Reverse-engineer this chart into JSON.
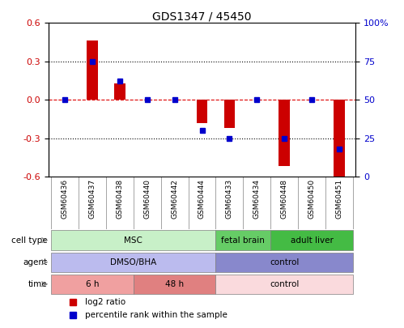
{
  "title": "GDS1347 / 45450",
  "samples": [
    "GSM60436",
    "GSM60437",
    "GSM60438",
    "GSM60440",
    "GSM60442",
    "GSM60444",
    "GSM60433",
    "GSM60434",
    "GSM60448",
    "GSM60450",
    "GSM60451"
  ],
  "log2_ratio": [
    0.0,
    0.46,
    0.13,
    0.0,
    0.0,
    -0.18,
    -0.22,
    0.0,
    -0.52,
    0.0,
    -0.62
  ],
  "percentile_rank": [
    50,
    75,
    62,
    50,
    50,
    30,
    25,
    50,
    25,
    50,
    18
  ],
  "ylim": [
    -0.6,
    0.6
  ],
  "y2lim": [
    0,
    100
  ],
  "yticks": [
    -0.6,
    -0.3,
    0.0,
    0.3,
    0.6
  ],
  "y2ticks": [
    0,
    25,
    50,
    75,
    100
  ],
  "hline_y": 0.0,
  "dot_lines": [
    0.3,
    -0.3
  ],
  "bar_color": "#cc0000",
  "dot_color": "#0000cc",
  "cell_type_groups": [
    {
      "label": "MSC",
      "start": 0,
      "end": 6,
      "color": "#c8f0c8"
    },
    {
      "label": "fetal brain",
      "start": 6,
      "end": 8,
      "color": "#66cc66"
    },
    {
      "label": "adult liver",
      "start": 8,
      "end": 11,
      "color": "#44bb44"
    }
  ],
  "agent_groups": [
    {
      "label": "DMSO/BHA",
      "start": 0,
      "end": 6,
      "color": "#bbbbee"
    },
    {
      "label": "control",
      "start": 6,
      "end": 11,
      "color": "#8888cc"
    }
  ],
  "time_groups": [
    {
      "label": "6 h",
      "start": 0,
      "end": 3,
      "color": "#f0a0a0"
    },
    {
      "label": "48 h",
      "start": 3,
      "end": 6,
      "color": "#e08080"
    },
    {
      "label": "control",
      "start": 6,
      "end": 11,
      "color": "#fadadd"
    }
  ],
  "row_labels": [
    "cell type",
    "agent",
    "time"
  ],
  "legend_items": [
    {
      "label": "log2 ratio",
      "color": "#cc0000",
      "marker": "s"
    },
    {
      "label": "percentile rank within the sample",
      "color": "#0000cc",
      "marker": "s"
    }
  ]
}
